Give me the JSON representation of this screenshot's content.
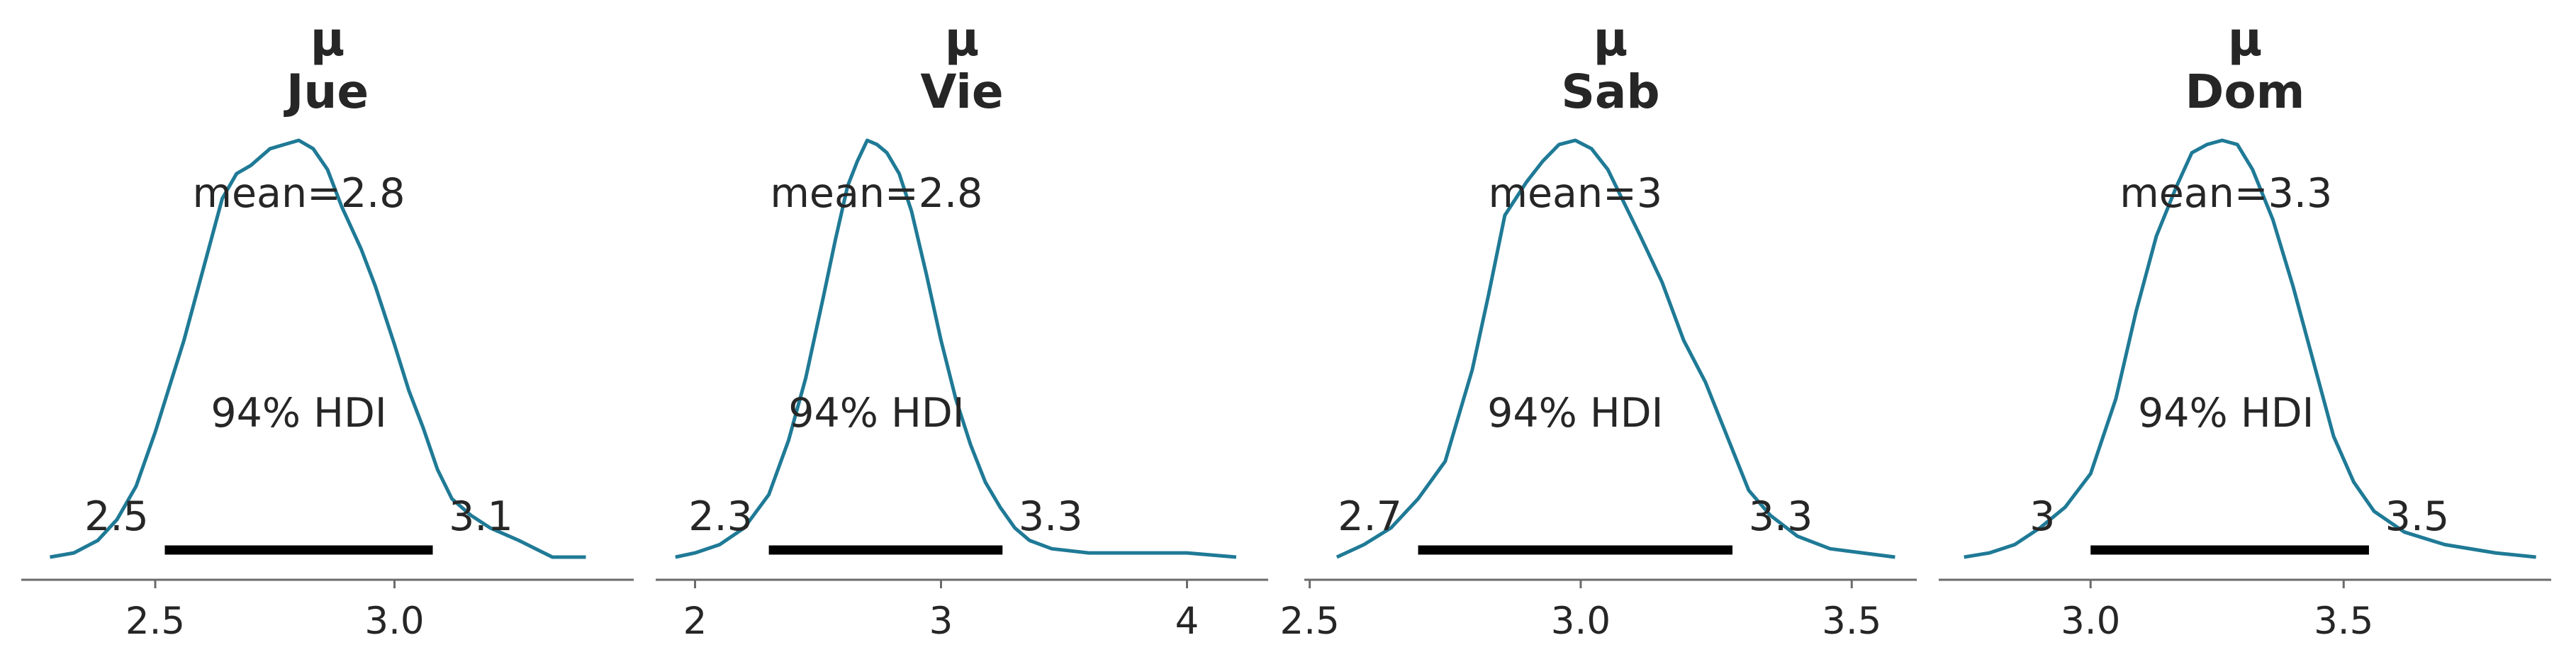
{
  "chart_data": [
    {
      "type": "area",
      "title": "μ\nJue",
      "title_lines": [
        "μ",
        "Jue"
      ],
      "mean_label": "mean=2.8",
      "hdi_label": "94% HDI",
      "hdi": [
        2.52,
        3.08
      ],
      "hdi_low_label": "2.5",
      "hdi_high_label": "3.1",
      "xlim": [
        2.22,
        3.5
      ],
      "ticks": [
        2.5,
        3.0
      ],
      "tick_labels": [
        "2.5",
        "3.0"
      ],
      "color": "#1f7a96",
      "density": {
        "x": [
          2.28,
          2.33,
          2.38,
          2.42,
          2.46,
          2.5,
          2.53,
          2.56,
          2.6,
          2.64,
          2.67,
          2.7,
          2.74,
          2.77,
          2.8,
          2.83,
          2.86,
          2.89,
          2.93,
          2.96,
          3.0,
          3.03,
          3.06,
          3.09,
          3.12,
          3.16,
          3.2,
          3.26,
          3.33,
          3.4
        ],
        "y": [
          0.0,
          0.01,
          0.04,
          0.09,
          0.17,
          0.3,
          0.41,
          0.52,
          0.69,
          0.86,
          0.92,
          0.94,
          0.98,
          0.99,
          1.0,
          0.98,
          0.93,
          0.84,
          0.74,
          0.65,
          0.51,
          0.4,
          0.31,
          0.21,
          0.14,
          0.1,
          0.07,
          0.04,
          0.0,
          0.0
        ]
      }
    },
    {
      "type": "area",
      "title": "μ\nVie",
      "title_lines": [
        "μ",
        "Vie"
      ],
      "mean_label": "mean=2.8",
      "hdi_label": "94% HDI",
      "hdi": [
        2.3,
        3.25
      ],
      "hdi_low_label": "2.3",
      "hdi_high_label": "3.3",
      "xlim": [
        1.84,
        4.33
      ],
      "ticks": [
        2,
        3,
        4
      ],
      "tick_labels": [
        "2",
        "3",
        "4"
      ],
      "color": "#1f7a96",
      "density": {
        "x": [
          1.92,
          2.0,
          2.1,
          2.2,
          2.3,
          2.38,
          2.45,
          2.52,
          2.57,
          2.62,
          2.66,
          2.7,
          2.74,
          2.78,
          2.83,
          2.88,
          2.94,
          3.0,
          3.06,
          3.12,
          3.18,
          3.24,
          3.3,
          3.36,
          3.45,
          3.6,
          3.8,
          4.0,
          4.2
        ],
        "y": [
          0.0,
          0.01,
          0.03,
          0.07,
          0.15,
          0.28,
          0.43,
          0.62,
          0.76,
          0.89,
          0.95,
          1.0,
          0.99,
          0.97,
          0.92,
          0.83,
          0.68,
          0.52,
          0.38,
          0.27,
          0.18,
          0.12,
          0.07,
          0.04,
          0.02,
          0.01,
          0.01,
          0.01,
          0.0
        ]
      }
    },
    {
      "type": "area",
      "title": "μ\nSab",
      "title_lines": [
        "μ",
        "Sab"
      ],
      "mean_label": "mean=3",
      "hdi_label": "94% HDI",
      "hdi": [
        2.7,
        3.28
      ],
      "hdi_low_label": "2.7",
      "hdi_high_label": "3.3",
      "xlim": [
        2.49,
        3.62
      ],
      "ticks": [
        2.5,
        3.0,
        3.5
      ],
      "tick_labels": [
        "2.5",
        "3.0",
        "3.5"
      ],
      "color": "#1f7a96",
      "density": {
        "x": [
          2.55,
          2.6,
          2.65,
          2.7,
          2.75,
          2.8,
          2.83,
          2.86,
          2.9,
          2.93,
          2.96,
          2.99,
          3.02,
          3.05,
          3.08,
          3.11,
          3.15,
          3.19,
          3.23,
          3.27,
          3.31,
          3.35,
          3.4,
          3.46,
          3.52,
          3.58
        ],
        "y": [
          0.0,
          0.03,
          0.07,
          0.14,
          0.23,
          0.45,
          0.63,
          0.82,
          0.9,
          0.95,
          0.99,
          1.0,
          0.98,
          0.93,
          0.85,
          0.77,
          0.66,
          0.52,
          0.42,
          0.29,
          0.16,
          0.1,
          0.05,
          0.02,
          0.01,
          0.0
        ]
      }
    },
    {
      "type": "area",
      "title": "μ\nDom",
      "title_lines": [
        "μ",
        "Dom"
      ],
      "mean_label": "mean=3.3",
      "hdi_label": "94% HDI",
      "hdi": [
        3.0,
        3.55
      ],
      "hdi_low_label": "3",
      "hdi_high_label": "3.5",
      "xlim": [
        2.7,
        3.91
      ],
      "ticks": [
        3.0,
        3.5
      ],
      "tick_labels": [
        "3.0",
        "3.5"
      ],
      "color": "#1f7a96",
      "density": {
        "x": [
          2.75,
          2.8,
          2.85,
          2.9,
          2.95,
          3.0,
          3.05,
          3.09,
          3.13,
          3.17,
          3.2,
          3.23,
          3.26,
          3.29,
          3.32,
          3.36,
          3.4,
          3.44,
          3.48,
          3.52,
          3.56,
          3.62,
          3.7,
          3.8,
          3.88
        ],
        "y": [
          0.0,
          0.01,
          0.03,
          0.07,
          0.12,
          0.2,
          0.38,
          0.59,
          0.77,
          0.89,
          0.97,
          0.99,
          1.0,
          0.99,
          0.93,
          0.81,
          0.65,
          0.47,
          0.29,
          0.18,
          0.11,
          0.06,
          0.03,
          0.01,
          0.0
        ]
      }
    }
  ]
}
